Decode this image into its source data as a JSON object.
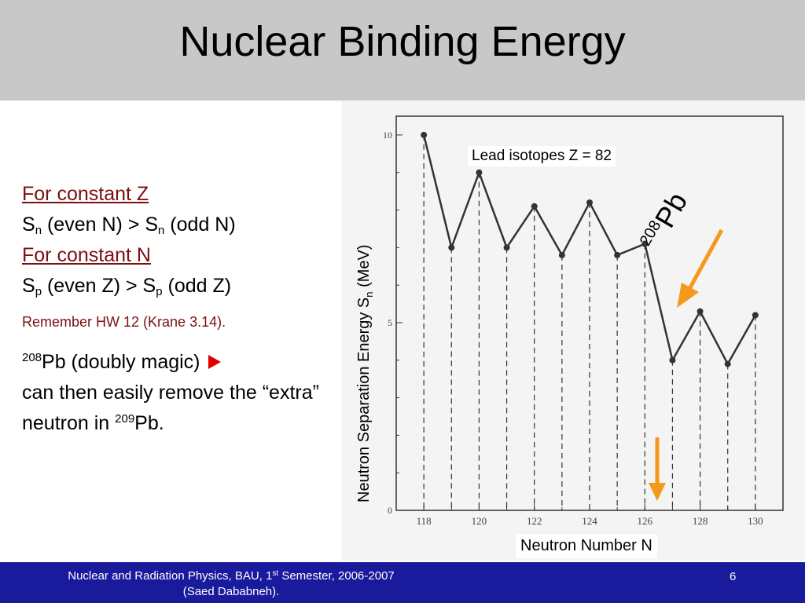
{
  "slide": {
    "title": "Nuclear Binding Energy",
    "left": {
      "const_z_heading": "For constant Z",
      "sn_line": {
        "s1": "S",
        "sub1": "n",
        "mid": " (even N) > S",
        "sub2": "n",
        "end": " (odd N)"
      },
      "const_n_heading": "For constant N",
      "sp_line": {
        "s1": "S",
        "sub1": "p",
        "mid": " (even Z) > S",
        "sub2": "p",
        "end": " (odd Z)"
      },
      "remember": "Remember HW 12 (Krane 3.14).",
      "magic": {
        "sup": "208",
        "text1": "Pb (doubly magic)",
        "text2": "can then easily remove the “extra” neutron in ",
        "sup2": "209",
        "text3": "Pb."
      }
    },
    "annotations": {
      "lead_isotopes": "Lead isotopes Z = 82",
      "pb208_sup": "208",
      "pb208_text": "Pb"
    },
    "footer": {
      "text1": "Nuclear and Radiation Physics, BAU, 1",
      "sup": "st",
      "text2": " Semester, 2006-2007",
      "line2": "(Saed Dababneh).",
      "page": "6"
    },
    "colors": {
      "title_bar": "#c8c8c8",
      "footer": "#1a1a9c",
      "arrow": "#f39a1e",
      "marker": "#e00000",
      "heading": "#7a1010"
    }
  },
  "chart_data": {
    "type": "line",
    "xlabel": "Neutron Number N",
    "ylabel": {
      "pre": "Neutron Separation Energy S",
      "sub": "n",
      "post": " (MeV)"
    },
    "xlim": [
      117,
      131
    ],
    "ylim": [
      0,
      10.5
    ],
    "x_ticks": [
      118,
      120,
      122,
      124,
      126,
      128,
      130
    ],
    "y_ticks": [
      0,
      5,
      10
    ],
    "grid": false,
    "dashed_drop_lines": true,
    "series": [
      {
        "x": [
          118,
          119,
          120,
          121,
          122,
          123,
          124,
          125,
          126,
          127,
          128,
          129,
          130
        ],
        "y": [
          10.0,
          7.0,
          9.0,
          7.0,
          8.1,
          6.8,
          8.2,
          6.8,
          7.1,
          4.0,
          5.3,
          3.9,
          5.2
        ]
      }
    ]
  }
}
